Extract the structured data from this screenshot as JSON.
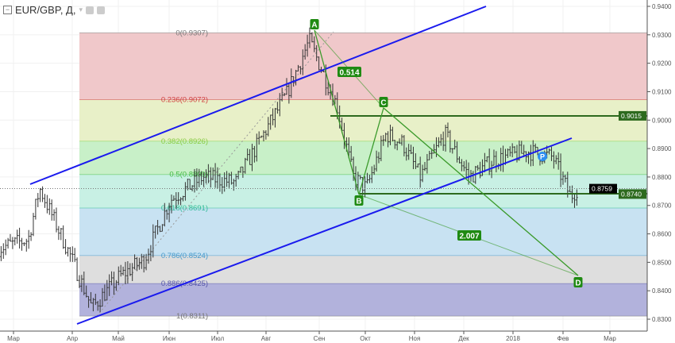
{
  "header": {
    "symbol": "EUR/GBP, Д,",
    "collapse_icon": "minus-square-icon",
    "dropdown_icon": "chevron-down-icon",
    "eye_icon": "eye-icon",
    "settings_icon": "gear-icon"
  },
  "chart_data": {
    "type": "ohlc-bar",
    "x_ticks": [
      "Мар",
      "Апр",
      "Май",
      "Июн",
      "Июл",
      "Авг",
      "Сен",
      "Окт",
      "Ноя",
      "Дек",
      "2018",
      "Фев",
      "Мар"
    ],
    "y_ticks": [
      "0.9400",
      "0.9300",
      "0.9200",
      "0.9100",
      "0.9000",
      "0.8900",
      "0.8800",
      "0.8700",
      "0.8600",
      "0.8500",
      "0.8400",
      "0.8300"
    ],
    "ylim": [
      0.827,
      0.942
    ],
    "price_path": [
      {
        "date": "2017-02-20",
        "price": 0.855
      },
      {
        "date": "2017-03-10",
        "price": 0.858
      },
      {
        "date": "2017-03-17",
        "price": 0.876
      },
      {
        "date": "2017-04-05",
        "price": 0.852
      },
      {
        "date": "2017-04-18",
        "price": 0.834
      },
      {
        "date": "2017-05-05",
        "price": 0.845
      },
      {
        "date": "2017-05-20",
        "price": 0.851
      },
      {
        "date": "2017-06-05",
        "price": 0.872
      },
      {
        "date": "2017-06-25",
        "price": 0.88
      },
      {
        "date": "2017-07-15",
        "price": 0.878
      },
      {
        "date": "2017-07-30",
        "price": 0.893
      },
      {
        "date": "2017-08-15",
        "price": 0.909
      },
      {
        "date": "2017-08-29",
        "price": 0.928
      },
      {
        "date": "2017-09-15",
        "price": 0.905
      },
      {
        "date": "2017-09-25",
        "price": 0.88
      },
      {
        "date": "2017-10-03",
        "price": 0.876
      },
      {
        "date": "2017-10-15",
        "price": 0.895
      },
      {
        "date": "2017-10-25",
        "price": 0.892
      },
      {
        "date": "2017-11-05",
        "price": 0.88
      },
      {
        "date": "2017-11-20",
        "price": 0.895
      },
      {
        "date": "2017-12-05",
        "price": 0.88
      },
      {
        "date": "2017-12-20",
        "price": 0.886
      },
      {
        "date": "2018-01-10",
        "price": 0.889
      },
      {
        "date": "2018-01-25",
        "price": 0.887
      },
      {
        "date": "2018-02-05",
        "price": 0.873
      },
      {
        "date": "2018-02-09",
        "price": 0.8759
      }
    ],
    "fib_levels": [
      {
        "ratio": "0",
        "price": "0.9307",
        "label": "0(0.9307)",
        "color": "#777777",
        "fill": "#f0c8ca"
      },
      {
        "ratio": "0.236",
        "price": "0.9072",
        "label": "0.236(0.9072)",
        "color": "#d04040",
        "fill": "#e8f0c8"
      },
      {
        "ratio": "0.382",
        "price": "0.8926",
        "label": "0.382(0.8926)",
        "color": "#88cc44",
        "fill": "#c8f0c8"
      },
      {
        "ratio": "0.5",
        "price": "0.8809",
        "label": "0.5(0.8809)",
        "color": "#44bb44",
        "fill": "#c8f0e4"
      },
      {
        "ratio": "0.618",
        "price": "0.8691",
        "label": "0.618(0.8691)",
        "color": "#33bb99",
        "fill": "#c8e2f2"
      },
      {
        "ratio": "0.786",
        "price": "0.8524",
        "label": "0.786(0.8524)",
        "color": "#4499cc",
        "fill": "#dedede"
      },
      {
        "ratio": "0.886",
        "price": "0.8425",
        "label": "0.886(0.8425)",
        "color": "#5555aa",
        "fill": "#b2b2dc"
      },
      {
        "ratio": "1",
        "price": "0.8311",
        "label": "1(0.8311)",
        "color": "#777777",
        "fill": ""
      }
    ],
    "pattern": {
      "points": [
        "A",
        "B",
        "C",
        "D"
      ],
      "ratio_ac": "0.514",
      "ratio_bd": "2.007",
      "color": "#2e8b1e"
    },
    "price_labels": {
      "level_c": "0.9015",
      "current": "0.8759",
      "level_b": "0.8740"
    },
    "channel_color": "#1a1aee",
    "marker": "P"
  }
}
